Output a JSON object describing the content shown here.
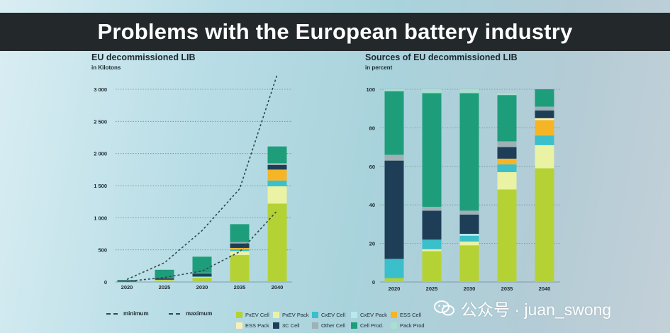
{
  "header": {
    "title": "Problems with the European battery industry"
  },
  "left_chart": {
    "title": "EU decommissioned LIB",
    "subtitle": "in Kilotons"
  },
  "right_chart": {
    "title": "Sources of EU decommissioned LIB",
    "subtitle": "in percent"
  },
  "colors": {
    "PxEV Cell": "#b5d234",
    "PxEV Pack": "#eaf2a4",
    "CxEV Cell": "#3bbfca",
    "CxEV Pack": "#b9e8ee",
    "ESS Cell": "#f6b526",
    "ESS Pack": "#f7f1b8",
    "3C Cell": "#1e3e57",
    "Other Cell": "#9fb0b6",
    "Cell Prod.": "#1e9d7b",
    "Pack Prod": "#a8e0cf"
  },
  "legend": {
    "minimum": "minimum",
    "maximum": "maximum",
    "row1": [
      "PxEV Cell",
      "PxEV Pack",
      "CxEV Cell",
      "CxEV Pack",
      "ESS Cell"
    ],
    "row2": [
      "ESS Pack",
      "3C Cell",
      "Other Cell",
      "Cell Prod.",
      "Pack Prod"
    ]
  },
  "watermark": {
    "text": "公众号 · juan_swong"
  },
  "chart_data": [
    {
      "type": "bar",
      "stacked": true,
      "title": "EU decommissioned LIB",
      "ylabel": "in Kilotons",
      "categories": [
        "2020",
        "2025",
        "2030",
        "2035",
        "2040"
      ],
      "ylim": [
        0,
        3000
      ],
      "yticks": [
        0,
        500,
        1000,
        1500,
        2000,
        2500,
        3000
      ],
      "ytick_labels": [
        "0",
        "500",
        "1 000",
        "1 500",
        "2 000",
        "2 500",
        "3 000"
      ],
      "series": [
        {
          "name": "PxEV Cell",
          "values": [
            5,
            30,
            70,
            420,
            1220
          ]
        },
        {
          "name": "PxEV Pack",
          "values": [
            0,
            5,
            10,
            60,
            270
          ]
        },
        {
          "name": "CxEV Cell",
          "values": [
            0,
            0,
            5,
            30,
            90
          ]
        },
        {
          "name": "CxEV Pack",
          "values": [
            0,
            0,
            0,
            0,
            0
          ]
        },
        {
          "name": "ESS Cell",
          "values": [
            0,
            0,
            0,
            20,
            170
          ]
        },
        {
          "name": "ESS Pack",
          "values": [
            0,
            0,
            0,
            0,
            0
          ]
        },
        {
          "name": "3C Cell",
          "values": [
            20,
            25,
            50,
            70,
            70
          ]
        },
        {
          "name": "Other Cell",
          "values": [
            0,
            5,
            10,
            20,
            30
          ]
        },
        {
          "name": "Cell Prod.",
          "values": [
            5,
            125,
            250,
            280,
            260
          ]
        },
        {
          "name": "Pack Prod",
          "values": [
            0,
            0,
            5,
            0,
            0
          ]
        }
      ],
      "lines": [
        {
          "name": "minimum",
          "style": "dashed",
          "x": [
            "2020",
            "2025",
            "2030",
            "2035",
            "2040"
          ],
          "values": [
            10,
            70,
            170,
            470,
            1110
          ]
        },
        {
          "name": "maximum",
          "style": "dashed",
          "x": [
            "2020",
            "2025",
            "2030",
            "2035",
            "2040"
          ],
          "values": [
            40,
            300,
            800,
            1450,
            3230
          ]
        }
      ]
    },
    {
      "type": "bar",
      "stacked": true,
      "title": "Sources of EU decommissioned LIB",
      "ylabel": "in percent",
      "categories": [
        "2020",
        "2025",
        "2030",
        "2035",
        "2040"
      ],
      "ylim": [
        0,
        100
      ],
      "yticks": [
        0,
        20,
        40,
        60,
        80,
        100
      ],
      "ytick_labels": [
        "0",
        "20",
        "40",
        "60",
        "80",
        "100"
      ],
      "series": [
        {
          "name": "PxEV Cell",
          "values": [
            2,
            16,
            19,
            48,
            59
          ]
        },
        {
          "name": "PxEV Pack",
          "values": [
            0,
            1,
            2,
            9,
            12
          ]
        },
        {
          "name": "CxEV Cell",
          "values": [
            10,
            5,
            3,
            4,
            5
          ]
        },
        {
          "name": "CxEV Pack",
          "values": [
            0,
            0,
            1,
            0,
            0
          ]
        },
        {
          "name": "ESS Cell",
          "values": [
            0,
            0,
            0,
            3,
            8
          ]
        },
        {
          "name": "ESS Pack",
          "values": [
            0,
            0,
            0,
            0,
            1
          ]
        },
        {
          "name": "3C Cell",
          "values": [
            51,
            15,
            10,
            6,
            4
          ]
        },
        {
          "name": "Other Cell",
          "values": [
            3,
            2,
            2,
            3,
            2
          ]
        },
        {
          "name": "Cell Prod.",
          "values": [
            33,
            59,
            61,
            24,
            9
          ]
        },
        {
          "name": "Pack Prod",
          "values": [
            1,
            2,
            2,
            1,
            0
          ]
        }
      ]
    }
  ]
}
